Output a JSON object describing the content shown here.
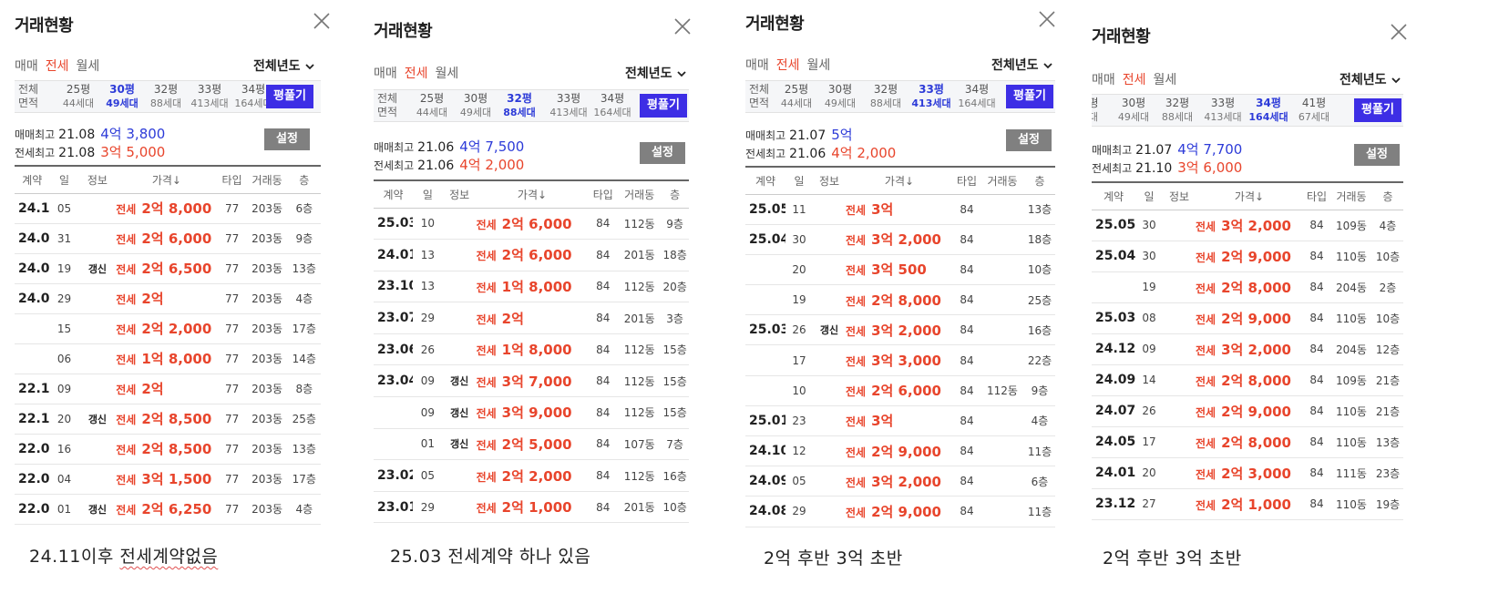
{
  "colors": {
    "accent_red": "#e8452c",
    "accent_blue": "#2d3bd8",
    "button_blue": "#3d2ee5",
    "button_gray": "#808080"
  },
  "panels": [
    {
      "title": "거래현황",
      "tabs": [
        "매매",
        "전세",
        "월세"
      ],
      "active_tab": 1,
      "year": "전체년도",
      "row_label": "전체\n면적",
      "sizes": [
        {
          "p": "25평",
          "u": "44세대"
        },
        {
          "p": "30평",
          "u": "49세대",
          "on": true
        },
        {
          "p": "32평",
          "u": "88세대"
        },
        {
          "p": "33평",
          "u": "413세대"
        },
        {
          "p": "34평",
          "u": "164세대"
        }
      ],
      "pyeong_btn": "평풀기",
      "sale_label": "매매최고",
      "sale_date": "21.08",
      "sale_price": "4억 3,800",
      "jeonse_label": "전세최고",
      "jeonse_date": "21.08",
      "jeonse_price": "3억 5,000",
      "settings_btn": "설정",
      "headers": [
        "계약",
        "일",
        "정보",
        "가격↓",
        "타입",
        "거래동",
        "층"
      ],
      "rows": [
        [
          "24.11",
          "05",
          "",
          "전세",
          "2억 8,000",
          "77",
          "203동",
          "6층"
        ],
        [
          "24.08",
          "31",
          "",
          "전세",
          "2억 6,000",
          "77",
          "203동",
          "9층"
        ],
        [
          "24.07",
          "19",
          "갱신",
          "전세",
          "2억 6,500",
          "77",
          "203동",
          "13층"
        ],
        [
          "24.01",
          "29",
          "",
          "전세",
          "2억",
          "77",
          "203동",
          "4층"
        ],
        [
          "",
          "15",
          "",
          "전세",
          "2억 2,000",
          "77",
          "203동",
          "17층"
        ],
        [
          "",
          "06",
          "",
          "전세",
          "1억 8,000",
          "77",
          "203동",
          "14층"
        ],
        [
          "22.11",
          "09",
          "",
          "전세",
          "2억",
          "77",
          "203동",
          "8층"
        ],
        [
          "22.10",
          "20",
          "갱신",
          "전세",
          "2억 8,500",
          "77",
          "203동",
          "25층"
        ],
        [
          "22.07",
          "16",
          "",
          "전세",
          "2억 8,500",
          "77",
          "203동",
          "13층"
        ],
        [
          "22.04",
          "04",
          "",
          "전세",
          "3억 1,500",
          "77",
          "203동",
          "17층"
        ],
        [
          "22.01",
          "01",
          "갱신",
          "전세",
          "2억 6,250",
          "77",
          "203동",
          "4층"
        ]
      ],
      "caption_pre": "24.11이후 ",
      "caption_squiggle": "전세계약없음",
      "caption_post": ""
    },
    {
      "title": "거래현황",
      "tabs": [
        "매매",
        "전세",
        "월세"
      ],
      "active_tab": 1,
      "year": "전체년도",
      "row_label": "전체\n면적",
      "sizes": [
        {
          "p": "25평",
          "u": "44세대"
        },
        {
          "p": "30평",
          "u": "49세대"
        },
        {
          "p": "32평",
          "u": "88세대",
          "on": true
        },
        {
          "p": "33평",
          "u": "413세대"
        },
        {
          "p": "34평",
          "u": "164세대"
        }
      ],
      "pyeong_btn": "평풀기",
      "sale_label": "매매최고",
      "sale_date": "21.06",
      "sale_price": "4억 7,500",
      "jeonse_label": "전세최고",
      "jeonse_date": "21.06",
      "jeonse_price": "4억 2,000",
      "settings_btn": "설정",
      "headers": [
        "계약",
        "일",
        "정보",
        "가격↓",
        "타입",
        "거래동",
        "층"
      ],
      "rows": [
        [
          "25.03",
          "10",
          "",
          "전세",
          "2억 6,000",
          "84",
          "112동",
          "9층"
        ],
        [
          "24.01",
          "13",
          "",
          "전세",
          "2억 6,000",
          "84",
          "201동",
          "18층"
        ],
        [
          "23.10",
          "13",
          "",
          "전세",
          "1억 8,000",
          "84",
          "112동",
          "20층"
        ],
        [
          "23.07",
          "29",
          "",
          "전세",
          "2억",
          "84",
          "201동",
          "3층"
        ],
        [
          "23.06",
          "26",
          "",
          "전세",
          "1억 8,000",
          "84",
          "112동",
          "15층"
        ],
        [
          "23.04",
          "09",
          "갱신",
          "전세",
          "3억 7,000",
          "84",
          "112동",
          "15층"
        ],
        [
          "",
          "09",
          "갱신",
          "전세",
          "3억 9,000",
          "84",
          "112동",
          "15층"
        ],
        [
          "",
          "01",
          "갱신",
          "전세",
          "2억 5,000",
          "84",
          "107동",
          "7층"
        ],
        [
          "23.02",
          "05",
          "",
          "전세",
          "2억 2,000",
          "84",
          "112동",
          "16층"
        ],
        [
          "23.01",
          "29",
          "",
          "전세",
          "2억 1,000",
          "84",
          "201동",
          "10층"
        ]
      ],
      "caption_pre": "25.03 전세계약 하나 있음",
      "caption_squiggle": "",
      "caption_post": ""
    },
    {
      "title": "거래현황",
      "tabs": [
        "매매",
        "전세",
        "월세"
      ],
      "active_tab": 1,
      "year": "전체년도",
      "row_label": "전체\n면적",
      "sizes": [
        {
          "p": "25평",
          "u": "44세대"
        },
        {
          "p": "30평",
          "u": "49세대"
        },
        {
          "p": "32평",
          "u": "88세대"
        },
        {
          "p": "33평",
          "u": "413세대",
          "on": true
        },
        {
          "p": "34평",
          "u": "164세대"
        }
      ],
      "pyeong_btn": "평풀기",
      "sale_label": "매매최고",
      "sale_date": "21.07",
      "sale_price": "5억",
      "jeonse_label": "전세최고",
      "jeonse_date": "21.06",
      "jeonse_price": "4억 2,000",
      "settings_btn": "설정",
      "headers": [
        "계약",
        "일",
        "정보",
        "가격↓",
        "타입",
        "거래동",
        "층"
      ],
      "rows": [
        [
          "25.05",
          "11",
          "",
          "전세",
          "3억",
          "84",
          "",
          "13층"
        ],
        [
          "25.04",
          "30",
          "",
          "전세",
          "3억 2,000",
          "84",
          "",
          "18층"
        ],
        [
          "",
          "20",
          "",
          "전세",
          "3억 500",
          "84",
          "",
          "10층"
        ],
        [
          "",
          "19",
          "",
          "전세",
          "2억 8,000",
          "84",
          "",
          "25층"
        ],
        [
          "25.03",
          "26",
          "갱신",
          "전세",
          "3억 2,000",
          "84",
          "",
          "16층"
        ],
        [
          "",
          "17",
          "",
          "전세",
          "3억 3,000",
          "84",
          "",
          "22층"
        ],
        [
          "",
          "10",
          "",
          "전세",
          "2억 6,000",
          "84",
          "112동",
          "9층"
        ],
        [
          "25.01",
          "23",
          "",
          "전세",
          "3억",
          "84",
          "",
          "4층"
        ],
        [
          "24.10",
          "12",
          "",
          "전세",
          "2억 9,000",
          "84",
          "",
          "11층"
        ],
        [
          "24.09",
          "05",
          "",
          "전세",
          "3억 2,000",
          "84",
          "",
          "6층"
        ],
        [
          "24.08",
          "29",
          "",
          "전세",
          "2억 9,000",
          "84",
          "",
          "11층"
        ]
      ],
      "caption_pre": "2억 후반 3억 초반",
      "caption_squiggle": "",
      "caption_post": ""
    },
    {
      "title": "거래현황",
      "tabs": [
        "매매",
        "전세",
        "월세"
      ],
      "active_tab": 1,
      "year": "전체년도",
      "row_label": "",
      "sizes": [
        {
          "p": "평",
          "u": "대"
        },
        {
          "p": "30평",
          "u": "49세대"
        },
        {
          "p": "32평",
          "u": "88세대"
        },
        {
          "p": "33평",
          "u": "413세대"
        },
        {
          "p": "34평",
          "u": "164세대",
          "on": true
        },
        {
          "p": "41평",
          "u": "67세대"
        }
      ],
      "pyeong_btn": "평풀기",
      "sale_label": "매매최고",
      "sale_date": "21.07",
      "sale_price": "4억 7,700",
      "jeonse_label": "전세최고",
      "jeonse_date": "21.10",
      "jeonse_price": "3억 6,000",
      "settings_btn": "설정",
      "headers": [
        "계약",
        "일",
        "정보",
        "가격↓",
        "타입",
        "거래동",
        "층"
      ],
      "rows": [
        [
          "25.05",
          "30",
          "",
          "전세",
          "3억 2,000",
          "84",
          "109동",
          "4층"
        ],
        [
          "25.04",
          "30",
          "",
          "전세",
          "2억 9,000",
          "84",
          "110동",
          "10층"
        ],
        [
          "",
          "19",
          "",
          "전세",
          "2억 8,000",
          "84",
          "204동",
          "2층"
        ],
        [
          "25.03",
          "08",
          "",
          "전세",
          "2억 9,000",
          "84",
          "110동",
          "10층"
        ],
        [
          "24.12",
          "09",
          "",
          "전세",
          "3억 2,000",
          "84",
          "204동",
          "12층"
        ],
        [
          "24.09",
          "14",
          "",
          "전세",
          "2억 8,000",
          "84",
          "109동",
          "21층"
        ],
        [
          "24.07",
          "26",
          "",
          "전세",
          "2억 9,000",
          "84",
          "110동",
          "21층"
        ],
        [
          "24.05",
          "17",
          "",
          "전세",
          "2억 8,000",
          "84",
          "110동",
          "13층"
        ],
        [
          "24.01",
          "20",
          "",
          "전세",
          "2억 3,000",
          "84",
          "111동",
          "23층"
        ],
        [
          "23.12",
          "27",
          "",
          "전세",
          "2억 1,000",
          "84",
          "110동",
          "19층"
        ]
      ],
      "caption_pre": "2억 후반 3억 초반",
      "caption_squiggle": "",
      "caption_post": ""
    }
  ]
}
